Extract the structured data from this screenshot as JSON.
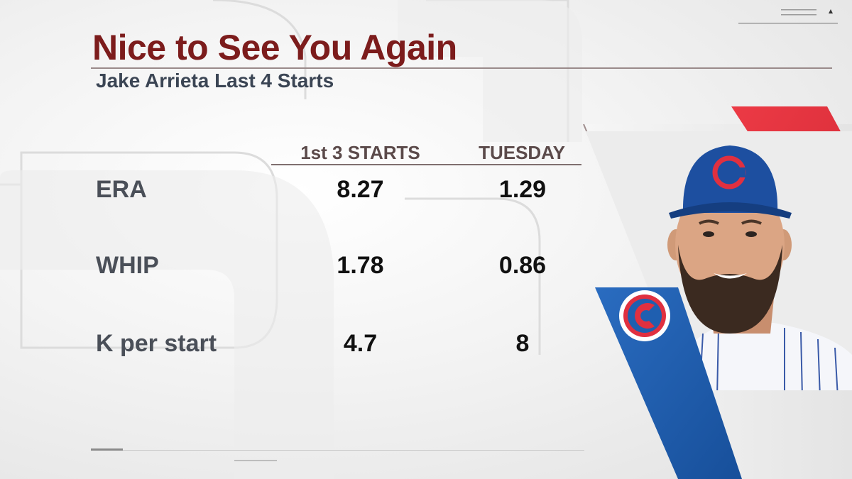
{
  "header": {
    "title": "Nice to See You Again",
    "subtitle": "Jake Arrieta Last 4 Starts"
  },
  "table": {
    "columns": [
      "1st 3 STARTS",
      "TUESDAY"
    ],
    "rows": [
      {
        "label": "ERA",
        "values": [
          "8.27",
          "1.29"
        ]
      },
      {
        "label": "WHIP",
        "values": [
          "1.78",
          "0.86"
        ]
      },
      {
        "label": "K per start",
        "values": [
          "4.7",
          "8"
        ]
      }
    ]
  },
  "colors": {
    "title": "#7c1c1c",
    "cubs_blue": "#1f5fb0",
    "cubs_red": "#e03040",
    "accent_red": "#e8343f"
  },
  "icons": [
    "cubs-logo-icon",
    "player-headshot",
    "menu-lines-icon",
    "triangle-up-icon"
  ]
}
